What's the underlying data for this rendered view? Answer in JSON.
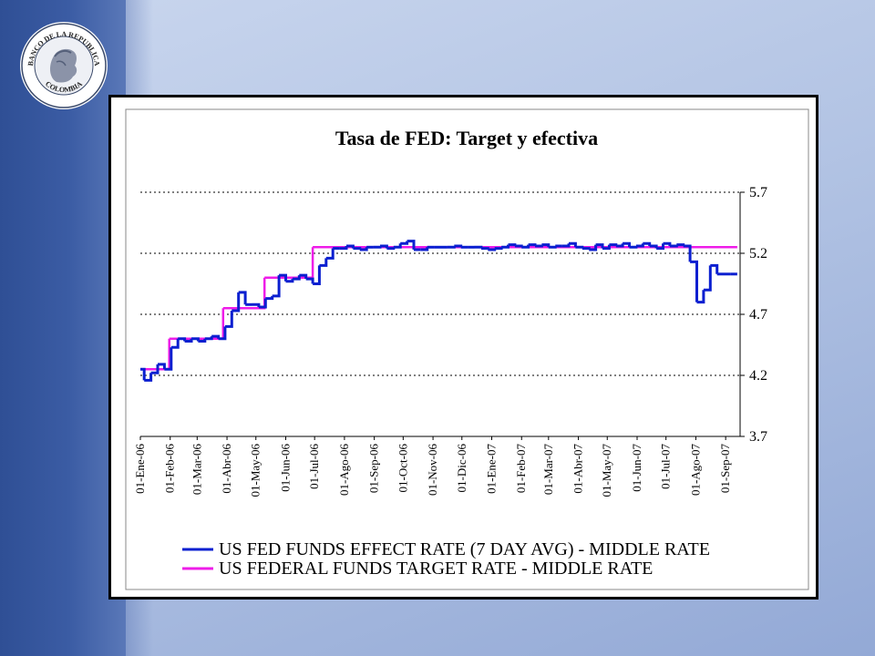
{
  "slide": {
    "background_color": "#b3c4e4",
    "band_color": "#3b5ca4",
    "logo": {
      "top_text": "BANCO DE LA REPUBLICA",
      "bottom_text": "COLOMBIA",
      "icon": "coin-head-icon"
    }
  },
  "chart_data": {
    "type": "line",
    "title": "Tasa de FED: Target y efectiva",
    "xlabel": "",
    "ylabel": "",
    "y_axis_side": "right",
    "ylim": [
      3.7,
      5.7
    ],
    "y_ticks": [
      "5.7",
      "5.2",
      "4.7",
      "4.2",
      "3.7"
    ],
    "grid": "dotted horizontal",
    "x_tick_labels": [
      "01-Ene-06",
      "01-Feb-06",
      "01-Mar-06",
      "01-Abr-06",
      "01-May-06",
      "01-Jun-06",
      "01-Jul-06",
      "01-Ago-06",
      "01-Sep-06",
      "01-Oct-06",
      "01-Nov-06",
      "01-Dic-06",
      "01-Ene-07",
      "01-Feb-07",
      "01-Mar-07",
      "01-Abr-07",
      "01-May-07",
      "01-Jun-07",
      "01-Jul-07",
      "01-Ago-07",
      "01-Sep-07"
    ],
    "legend_position": "bottom",
    "series": [
      {
        "name": "US FED FUNDS EFFECT RATE (7 DAY AVG) - MIDDLE RATE",
        "color": "#0a1fd0",
        "x": [
          "2006-01-01",
          "2006-01-05",
          "2006-01-12",
          "2006-01-19",
          "2006-01-26",
          "2006-02-02",
          "2006-02-09",
          "2006-02-16",
          "2006-02-23",
          "2006-03-02",
          "2006-03-09",
          "2006-03-16",
          "2006-03-23",
          "2006-03-30",
          "2006-04-06",
          "2006-04-13",
          "2006-04-20",
          "2006-04-27",
          "2006-05-04",
          "2006-05-11",
          "2006-05-18",
          "2006-05-25",
          "2006-06-01",
          "2006-06-08",
          "2006-06-15",
          "2006-06-22",
          "2006-06-29",
          "2006-07-06",
          "2006-07-13",
          "2006-07-20",
          "2006-07-27",
          "2006-08-03",
          "2006-08-10",
          "2006-08-17",
          "2006-08-24",
          "2006-08-31",
          "2006-09-07",
          "2006-09-14",
          "2006-09-21",
          "2006-09-28",
          "2006-10-05",
          "2006-10-12",
          "2006-10-19",
          "2006-10-26",
          "2006-11-02",
          "2006-11-09",
          "2006-11-16",
          "2006-11-23",
          "2006-11-30",
          "2006-12-07",
          "2006-12-14",
          "2006-12-21",
          "2006-12-28",
          "2007-01-04",
          "2007-01-11",
          "2007-01-18",
          "2007-01-25",
          "2007-02-01",
          "2007-02-08",
          "2007-02-15",
          "2007-02-22",
          "2007-03-01",
          "2007-03-08",
          "2007-03-15",
          "2007-03-22",
          "2007-03-29",
          "2007-04-05",
          "2007-04-12",
          "2007-04-19",
          "2007-04-26",
          "2007-05-03",
          "2007-05-10",
          "2007-05-17",
          "2007-05-24",
          "2007-05-31",
          "2007-06-07",
          "2007-06-14",
          "2007-06-21",
          "2007-06-28",
          "2007-07-05",
          "2007-07-12",
          "2007-07-19",
          "2007-07-26",
          "2007-08-02",
          "2007-08-09",
          "2007-08-16",
          "2007-08-23",
          "2007-08-30",
          "2007-09-06",
          "2007-09-13"
        ],
        "values": [
          4.25,
          4.16,
          4.22,
          4.29,
          4.25,
          4.43,
          4.5,
          4.48,
          4.5,
          4.48,
          4.5,
          4.52,
          4.5,
          4.6,
          4.73,
          4.88,
          4.78,
          4.78,
          4.76,
          4.83,
          4.85,
          5.02,
          4.97,
          4.99,
          5.02,
          4.99,
          4.95,
          5.1,
          5.16,
          5.24,
          5.24,
          5.26,
          5.24,
          5.23,
          5.25,
          5.25,
          5.26,
          5.24,
          5.25,
          5.28,
          5.3,
          5.23,
          5.23,
          5.25,
          5.25,
          5.25,
          5.25,
          5.26,
          5.25,
          5.25,
          5.25,
          5.24,
          5.23,
          5.24,
          5.25,
          5.27,
          5.26,
          5.25,
          5.27,
          5.26,
          5.27,
          5.25,
          5.26,
          5.26,
          5.28,
          5.25,
          5.24,
          5.23,
          5.27,
          5.24,
          5.27,
          5.26,
          5.28,
          5.25,
          5.26,
          5.28,
          5.26,
          5.24,
          5.28,
          5.26,
          5.27,
          5.26,
          5.13,
          4.8,
          4.9,
          5.1,
          5.03,
          5.03,
          5.03,
          5.03
        ]
      },
      {
        "name": "US FEDERAL FUNDS TARGET RATE - MIDDLE RATE",
        "color": "#ee1ce8",
        "x": [
          "2006-01-01",
          "2006-01-31",
          "2006-03-28",
          "2006-05-10",
          "2006-06-29",
          "2007-09-13"
        ],
        "values": [
          4.25,
          4.5,
          4.75,
          5.0,
          5.25,
          5.25
        ]
      }
    ]
  }
}
